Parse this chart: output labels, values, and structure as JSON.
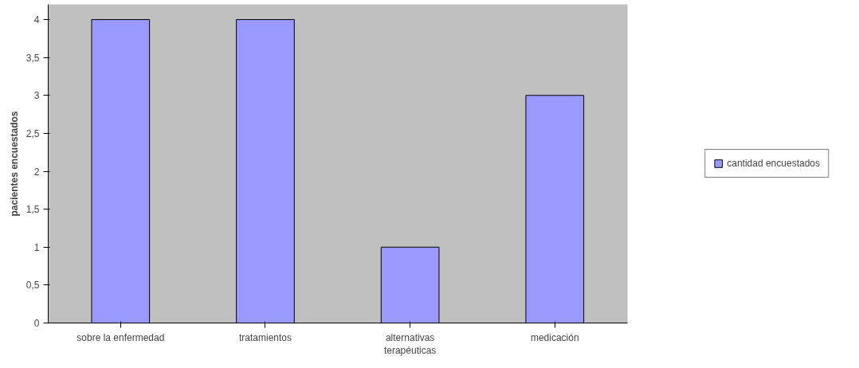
{
  "chart_data": {
    "type": "bar",
    "ylabel": "pacientes encuestados",
    "categories": [
      "sobre la enfermedad",
      "tratamientos",
      "alternativas terapéuticas",
      "medicación"
    ],
    "series": [
      {
        "name": "cantidad encuestados",
        "color": "#9999ff",
        "values": [
          4,
          4,
          1,
          3
        ]
      }
    ],
    "ylim": [
      0,
      4.2
    ],
    "yticks": [
      0,
      {
        "value": 0.5,
        "label": "0,5"
      },
      1,
      {
        "value": 1.5,
        "label": "1,5"
      },
      2,
      {
        "value": 2.5,
        "label": "2,5"
      },
      3,
      {
        "value": 3.5,
        "label": "3,5"
      },
      4
    ],
    "grid": false,
    "legend": "right"
  }
}
